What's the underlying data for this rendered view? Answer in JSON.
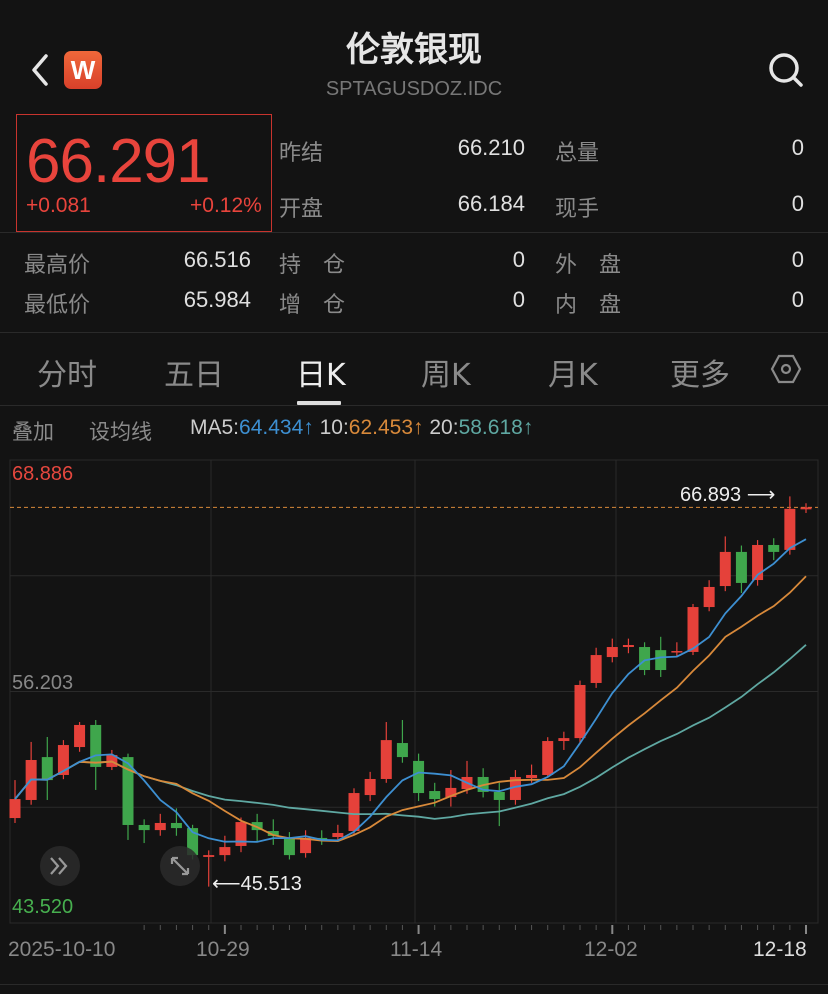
{
  "header": {
    "title": "伦敦银现",
    "code": "SPTAGUSDOZ.IDC",
    "logo_text": "W",
    "back_icon": "chevron-left-icon",
    "search_icon": "search-icon"
  },
  "quote": {
    "price": "66.291",
    "change": "+0.081",
    "change_pct": "+0.12%",
    "stats": [
      {
        "label": "昨结",
        "value": "66.210"
      },
      {
        "label": "总量",
        "value": "0"
      },
      {
        "label": "开盘",
        "value": "66.184"
      },
      {
        "label": "现手",
        "value": "0"
      },
      {
        "label": "最高价",
        "value": "66.516"
      },
      {
        "label": "持　仓",
        "value": "0"
      },
      {
        "label": "外　盘",
        "value": "0"
      },
      {
        "label": "最低价",
        "value": "65.984"
      },
      {
        "label": "增　仓",
        "value": "0"
      },
      {
        "label": "内　盘",
        "value": "0"
      }
    ]
  },
  "tabs": [
    {
      "label": "分时"
    },
    {
      "label": "五日"
    },
    {
      "label": "日K",
      "active": true
    },
    {
      "label": "周K"
    },
    {
      "label": "月K"
    },
    {
      "label": "更多"
    }
  ],
  "settings_icon": "hexagon-settings-icon",
  "ma_bar": {
    "overlay": "叠加",
    "set_ma": "设均线",
    "ma5_label": "MA5:",
    "ma5_value": "64.434",
    "ma10_label": "10:",
    "ma10_value": "62.453",
    "ma20_label": "20:",
    "ma20_value": "58.618",
    "arrow": "↑",
    "colors": {
      "ma5": "#3d8fd1",
      "ma10": "#d8893a",
      "ma20": "#5fa8a2"
    }
  },
  "chart_data": {
    "type": "candlestick",
    "y_max_label": "68.886",
    "y_mid_label": "56.203",
    "y_min_label": "43.520",
    "ylim": [
      43.52,
      68.886
    ],
    "high_marker": "66.893",
    "low_marker": "45.513",
    "x_tick_labels": [
      "2025-10-10",
      "10-29",
      "11-14",
      "12-02",
      "12-18"
    ],
    "up_color": "#e5413a",
    "down_color": "#3fa64c",
    "candles": [
      [
        49.27,
        51.35,
        49.0,
        50.31
      ],
      [
        50.26,
        53.44,
        50.0,
        52.45
      ],
      [
        52.61,
        53.71,
        50.26,
        51.35
      ],
      [
        51.63,
        53.54,
        51.4,
        53.27
      ],
      [
        53.16,
        54.53,
        52.9,
        54.37
      ],
      [
        54.37,
        54.64,
        50.81,
        52.07
      ],
      [
        52.07,
        53.0,
        51.9,
        52.72
      ],
      [
        52.61,
        52.8,
        48.07,
        48.89
      ],
      [
        48.89,
        49.2,
        47.9,
        48.61
      ],
      [
        48.61,
        49.5,
        48.3,
        49.0
      ],
      [
        49.0,
        49.8,
        48.3,
        48.72
      ],
      [
        48.72,
        48.9,
        47.0,
        47.24
      ],
      [
        47.14,
        47.5,
        45.513,
        47.24
      ],
      [
        47.24,
        48.3,
        46.9,
        47.68
      ],
      [
        47.74,
        49.3,
        47.4,
        49.05
      ],
      [
        49.05,
        49.5,
        48.0,
        48.61
      ],
      [
        48.56,
        49.2,
        47.8,
        48.29
      ],
      [
        48.18,
        48.5,
        47.0,
        47.24
      ],
      [
        47.35,
        48.6,
        47.1,
        48.18
      ],
      [
        48.18,
        48.6,
        47.8,
        48.07
      ],
      [
        48.23,
        48.9,
        48.0,
        48.45
      ],
      [
        48.56,
        50.9,
        48.4,
        50.64
      ],
      [
        50.53,
        51.8,
        50.2,
        51.41
      ],
      [
        51.41,
        54.53,
        51.2,
        53.54
      ],
      [
        53.38,
        54.64,
        52.3,
        52.61
      ],
      [
        52.4,
        52.8,
        50.2,
        50.64
      ],
      [
        50.75,
        51.2,
        49.9,
        50.31
      ],
      [
        50.42,
        51.9,
        49.9,
        50.92
      ],
      [
        50.86,
        52.4,
        50.6,
        51.52
      ],
      [
        51.52,
        52.0,
        50.4,
        50.7
      ],
      [
        50.7,
        51.2,
        48.83,
        50.26
      ],
      [
        50.26,
        51.9,
        50.0,
        51.52
      ],
      [
        51.46,
        52.2,
        51.2,
        51.63
      ],
      [
        51.63,
        53.7,
        51.5,
        53.49
      ],
      [
        53.49,
        54.0,
        53.0,
        53.65
      ],
      [
        53.65,
        56.8,
        53.4,
        56.56
      ],
      [
        56.67,
        58.6,
        56.4,
        58.2
      ],
      [
        58.09,
        59.1,
        57.8,
        58.64
      ],
      [
        58.64,
        59.1,
        58.3,
        58.75
      ],
      [
        58.64,
        58.9,
        57.1,
        57.38
      ],
      [
        58.47,
        59.2,
        57.0,
        57.38
      ],
      [
        58.37,
        58.9,
        58.1,
        58.42
      ],
      [
        58.37,
        61.0,
        58.2,
        60.83
      ],
      [
        60.83,
        62.3,
        60.6,
        61.93
      ],
      [
        61.98,
        64.7,
        61.7,
        63.85
      ],
      [
        63.85,
        64.2,
        61.6,
        62.15
      ],
      [
        62.31,
        64.5,
        62.0,
        64.23
      ],
      [
        64.23,
        64.6,
        63.4,
        63.85
      ],
      [
        63.96,
        66.893,
        63.7,
        66.21
      ],
      [
        66.184,
        66.516,
        65.984,
        66.291
      ]
    ],
    "candle_format": [
      "open",
      "high",
      "low",
      "close"
    ],
    "current_price_line": 66.291,
    "grid": true
  },
  "overlay_buttons": {
    "expand_icon": "double-chevron-right-icon",
    "fullscreen_icon": "resize-arrows-icon"
  }
}
